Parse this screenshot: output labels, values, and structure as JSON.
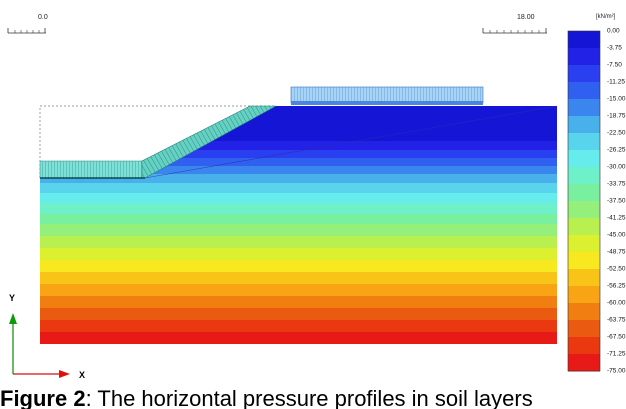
{
  "ruler": {
    "left_label": "0.0",
    "right_label": "18.00"
  },
  "legend": {
    "unit": "[kN/m²]",
    "ticks": [
      "0.00",
      "-3.75",
      "-7.50",
      "-11.25",
      "-15.00",
      "-18.75",
      "-22.50",
      "-26.25",
      "-30.00",
      "-33.75",
      "-37.50",
      "-41.25",
      "-45.00",
      "-48.75",
      "-52.50",
      "-56.25",
      "-60.00",
      "-63.75",
      "-67.50",
      "-71.25",
      "-75.00"
    ],
    "colors": [
      "#1515d6",
      "#2222e6",
      "#2a3ff0",
      "#3060f0",
      "#3a86ee",
      "#48b0ea",
      "#58d4ec",
      "#66ecec",
      "#6ef0c8",
      "#78f0a0",
      "#94f07a",
      "#b8f050",
      "#dcf030",
      "#f8e820",
      "#f8c418",
      "#f8a414",
      "#f07e10",
      "#ea5a10",
      "#ea3810",
      "#e81a18"
    ]
  },
  "axes": {
    "y_label": "Y",
    "x_label": "X"
  },
  "caption": {
    "prefix": "Figure 2",
    "text": "The horizontal pressure profiles in soil layers"
  }
}
